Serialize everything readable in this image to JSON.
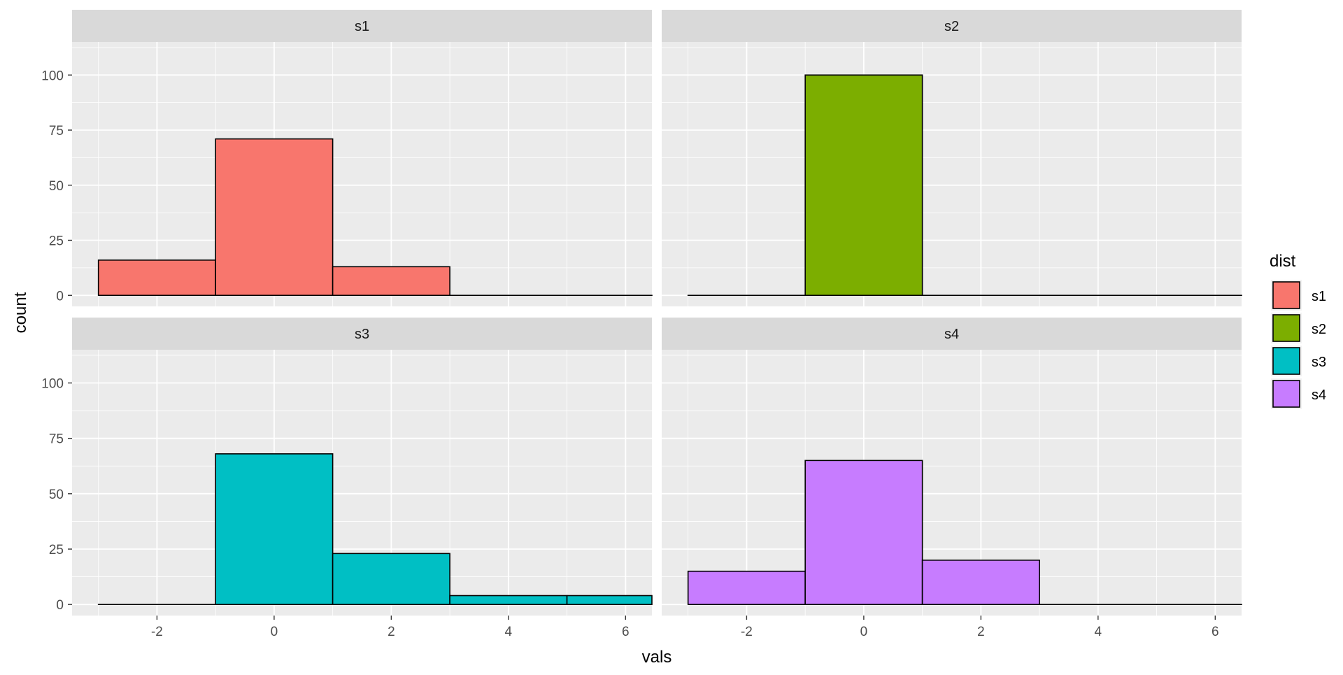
{
  "chart_data": {
    "type": "bar",
    "subtype": "faceted-histogram",
    "xlabel": "vals",
    "ylabel": "count",
    "xlim": [
      -3.45,
      6.45
    ],
    "ylim": [
      -5,
      115
    ],
    "x_ticks": [
      -2,
      0,
      2,
      4,
      6
    ],
    "y_ticks": [
      0,
      25,
      50,
      75,
      100
    ],
    "bin_edges": [
      -3,
      -1,
      1,
      3,
      5,
      7
    ],
    "grid": true,
    "legend": {
      "title": "dist",
      "position": "right",
      "entries": [
        {
          "label": "s1",
          "color": "#F8766D"
        },
        {
          "label": "s2",
          "color": "#7CAE00"
        },
        {
          "label": "s3",
          "color": "#00BFC4"
        },
        {
          "label": "s4",
          "color": "#C77CFF"
        }
      ]
    },
    "series": [
      {
        "name": "s1",
        "color": "#F8766D",
        "values": [
          16,
          71,
          13,
          0,
          0
        ]
      },
      {
        "name": "s2",
        "color": "#7CAE00",
        "values": [
          0,
          100,
          0,
          0,
          0
        ]
      },
      {
        "name": "s3",
        "color": "#00BFC4",
        "values": [
          0,
          68,
          23,
          4,
          4
        ]
      },
      {
        "name": "s4",
        "color": "#C77CFF",
        "values": [
          15,
          65,
          20,
          0,
          0
        ]
      }
    ],
    "colors": {
      "panel_background": "#EBEBEB",
      "strip_background": "#D9D9D9",
      "grid_major": "#FFFFFF",
      "bar_outline": "#000000"
    }
  }
}
